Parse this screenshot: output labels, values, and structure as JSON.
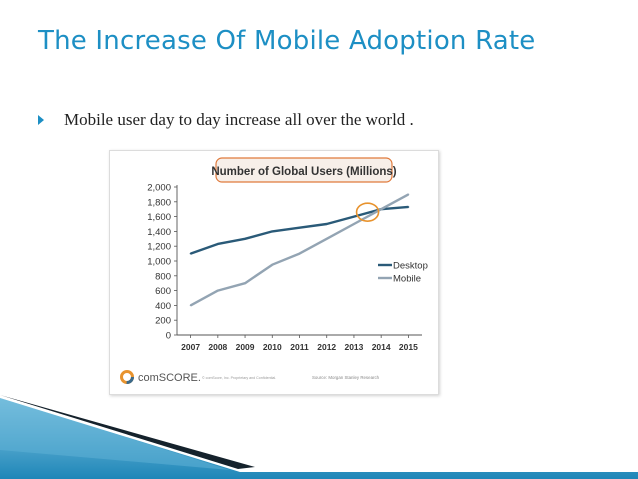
{
  "slide": {
    "title": "The Increase Of Mobile Adoption Rate",
    "bullet_text": "Mobile user day to day increase all over the world ."
  },
  "colors": {
    "title": "#1d8fc4",
    "desktop": "#2a5a78",
    "mobile": "#93a4b3",
    "highlight": "#e8932e",
    "chart_title_border": "#e07a3c"
  },
  "chart_data": {
    "type": "line",
    "title": "Number of Global Users (Millions)",
    "categories": [
      "2007",
      "2008",
      "2009",
      "2010",
      "2011",
      "2012",
      "2013",
      "2014",
      "2015"
    ],
    "series": [
      {
        "name": "Desktop",
        "values": [
          1100,
          1230,
          1300,
          1400,
          1450,
          1500,
          1600,
          1700,
          1730
        ]
      },
      {
        "name": "Mobile",
        "values": [
          400,
          600,
          700,
          950,
          1100,
          1300,
          1500,
          1700,
          1900
        ]
      }
    ],
    "y_ticks": [
      "0",
      "200",
      "400",
      "600",
      "800",
      "1,000",
      "1,200",
      "1,400",
      "1,600",
      "1,800",
      "2,000"
    ],
    "ylim": [
      0,
      2000
    ],
    "xlabel": "",
    "ylabel": "",
    "legend_position": "right",
    "annotation": "crossover circle near 2014",
    "source_logo_text": "comSCORE.",
    "footer_small_text": "© comScore, Inc. Proprietary and Confidential.",
    "footer_source": "Source: Morgan Stanley Research"
  }
}
